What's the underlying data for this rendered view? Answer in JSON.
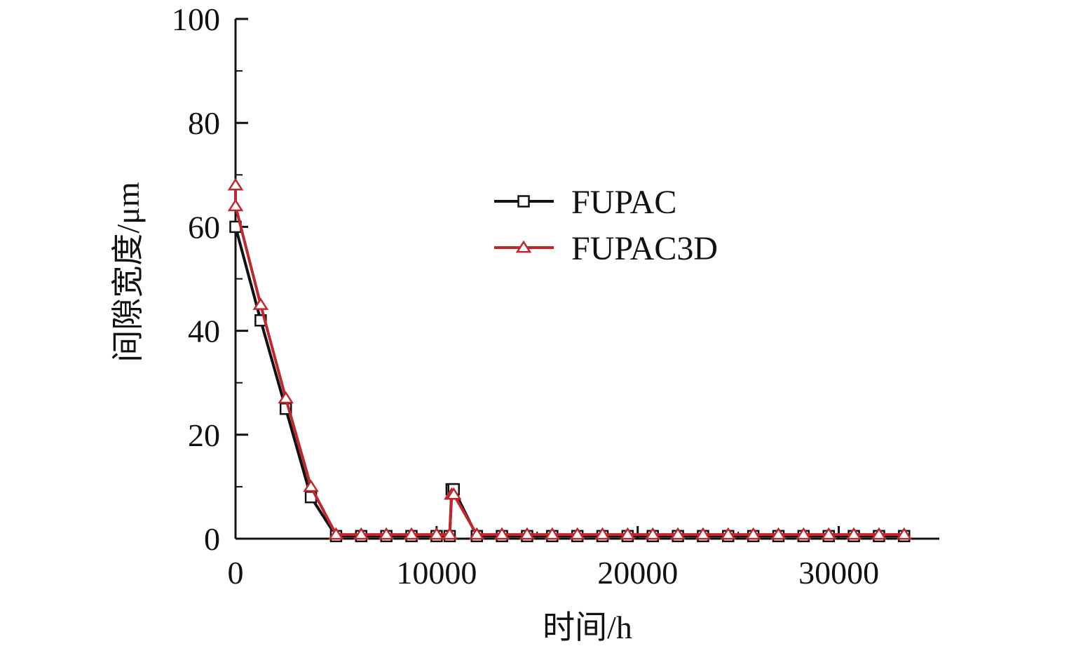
{
  "chart_data": {
    "type": "line",
    "title": "",
    "xlabel": "时间/h",
    "ylabel": "间隙宽度/μm",
    "xlim": [
      0,
      35000
    ],
    "ylim": [
      0,
      100
    ],
    "xticks": [
      0,
      10000,
      20000,
      30000
    ],
    "yticks": [
      0,
      20,
      40,
      60,
      80,
      100
    ],
    "grid": false,
    "legend_position": "center-right",
    "series": [
      {
        "name": "FUPAC",
        "color": "#111111",
        "marker": "square",
        "x": [
          0,
          1250,
          2500,
          3750,
          5000,
          6250,
          7500,
          8750,
          10000,
          10650,
          10750,
          10850,
          12000,
          13250,
          14500,
          15750,
          17000,
          18250,
          19500,
          20750,
          22000,
          23250,
          24500,
          25750,
          27000,
          28250,
          29500,
          30750,
          32000,
          33250
        ],
        "y": [
          60,
          42,
          25,
          8,
          0.5,
          0.5,
          0.5,
          0.5,
          0.5,
          0.5,
          9.5,
          9.5,
          0.5,
          0.5,
          0.5,
          0.5,
          0.5,
          0.5,
          0.5,
          0.5,
          0.5,
          0.5,
          0.5,
          0.5,
          0.5,
          0.5,
          0.5,
          0.5,
          0.5,
          0.5
        ]
      },
      {
        "name": "FUPAC3D",
        "color": "#c0272d",
        "marker": "triangle",
        "x": [
          0,
          0,
          1250,
          2500,
          3750,
          5000,
          6250,
          7500,
          8750,
          10000,
          10650,
          10750,
          10850,
          12000,
          13250,
          14500,
          15750,
          17000,
          18250,
          19500,
          20750,
          22000,
          23250,
          24500,
          25750,
          27000,
          28250,
          29500,
          30750,
          32000,
          33250
        ],
        "y": [
          68,
          64,
          45,
          27,
          10,
          0.8,
          0.8,
          0.8,
          0.8,
          0.8,
          0.8,
          8.5,
          8.5,
          0.8,
          0.8,
          0.8,
          0.8,
          0.8,
          0.8,
          0.8,
          0.8,
          0.8,
          0.8,
          0.8,
          0.8,
          0.8,
          0.8,
          0.8,
          0.8,
          0.8,
          0.8
        ]
      }
    ]
  }
}
